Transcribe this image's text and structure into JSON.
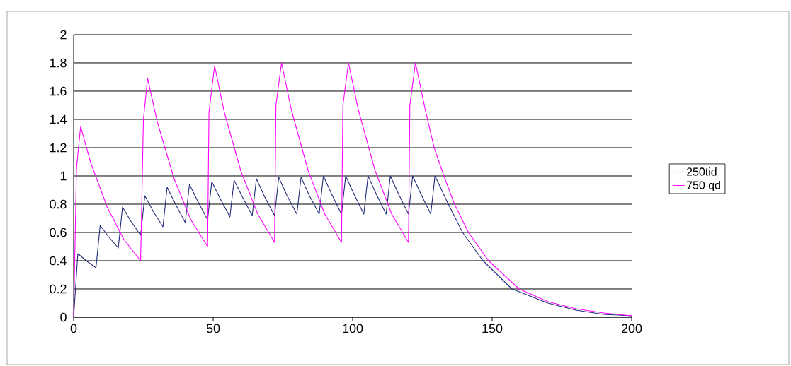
{
  "chart_data": {
    "type": "line",
    "xlim": [
      0,
      200
    ],
    "xticks": [
      0,
      50,
      100,
      150,
      200
    ],
    "ylim": [
      0,
      2
    ],
    "yticks": [
      0,
      0.2,
      0.4,
      0.6,
      0.8,
      1,
      1.2,
      1.4,
      1.6,
      1.8,
      2
    ],
    "grid": "y",
    "legend": "right",
    "marker": "none",
    "line_style": "solid",
    "series": [
      {
        "name": "250tid",
        "color": "#1f2a78",
        "x": [
          0,
          1.5,
          4.5,
          8,
          9.5,
          12.5,
          16,
          17.5,
          20.5,
          24,
          25.5,
          28.5,
          32,
          33.5,
          36.5,
          40,
          41.5,
          44.5,
          48,
          49.5,
          52.5,
          56,
          57.5,
          60.5,
          64,
          65.5,
          68.5,
          72,
          73.5,
          76.5,
          80,
          81.5,
          84.5,
          88,
          89.5,
          92.5,
          96,
          97.5,
          100.5,
          104,
          105.5,
          108.5,
          112,
          113.5,
          116.5,
          120,
          121.5,
          124.5,
          128,
          129.5,
          134.3,
          139.4,
          146.7,
          157.1,
          170,
          180,
          190,
          200
        ],
        "values": [
          0,
          0.45,
          0.4,
          0.35,
          0.65,
          0.57,
          0.49,
          0.78,
          0.68,
          0.58,
          0.86,
          0.75,
          0.64,
          0.92,
          0.8,
          0.67,
          0.94,
          0.82,
          0.69,
          0.96,
          0.84,
          0.71,
          0.97,
          0.85,
          0.72,
          0.98,
          0.85,
          0.72,
          0.99,
          0.86,
          0.73,
          0.99,
          0.86,
          0.73,
          1.0,
          0.87,
          0.73,
          1.0,
          0.87,
          0.73,
          1.0,
          0.87,
          0.73,
          1.0,
          0.87,
          0.73,
          1.0,
          0.87,
          0.73,
          1.0,
          0.8,
          0.6,
          0.4,
          0.2,
          0.1,
          0.05,
          0.02,
          0.01
        ]
      },
      {
        "name": "750 qd",
        "color": "#ff00ff",
        "x": [
          0,
          1,
          2.5,
          6,
          12,
          18,
          24,
          25,
          26.5,
          30,
          36,
          42,
          48,
          48.5,
          50.5,
          54,
          60,
          66,
          72,
          72.5,
          74.5,
          78,
          84,
          90,
          96,
          96.5,
          98.5,
          102,
          108,
          114,
          120,
          120.5,
          122.5,
          126,
          129.2,
          132.7,
          136.5,
          141.5,
          148.7,
          159.7,
          170,
          180,
          190,
          200
        ],
        "values": [
          0,
          1.05,
          1.35,
          1.1,
          0.78,
          0.55,
          0.4,
          1.4,
          1.69,
          1.38,
          0.98,
          0.69,
          0.5,
          1.45,
          1.78,
          1.45,
          1.03,
          0.73,
          0.53,
          1.5,
          1.8,
          1.47,
          1.04,
          0.73,
          0.53,
          1.5,
          1.8,
          1.47,
          1.04,
          0.73,
          0.53,
          1.5,
          1.8,
          1.47,
          1.2,
          1.0,
          0.8,
          0.6,
          0.4,
          0.2,
          0.11,
          0.06,
          0.03,
          0.01
        ]
      }
    ]
  }
}
